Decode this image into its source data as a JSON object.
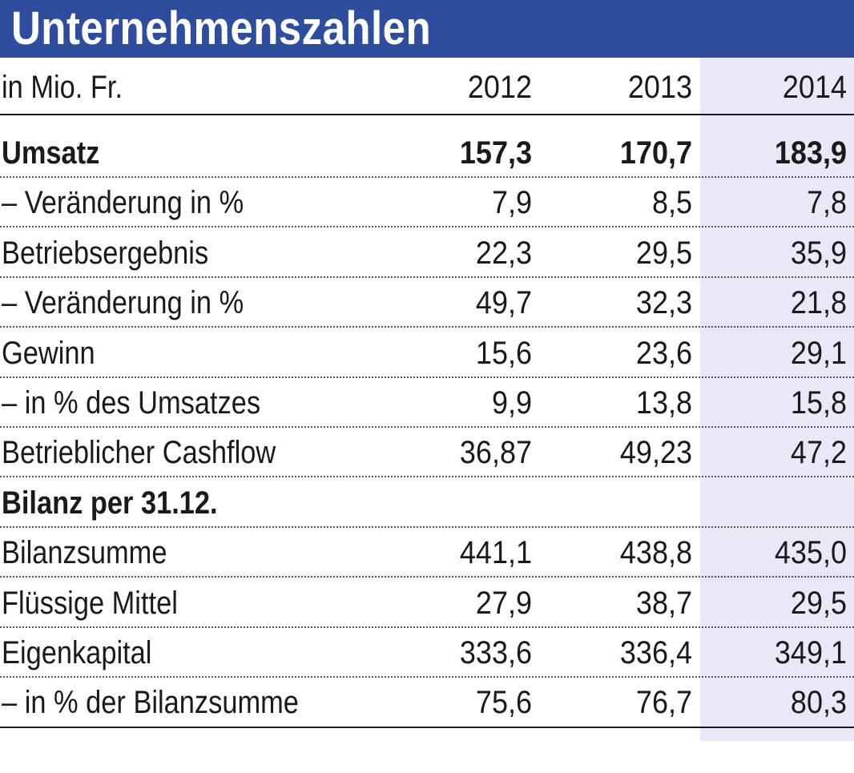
{
  "colors": {
    "accent": "#2f4d9e",
    "shade": "#e8e9f6"
  },
  "title": "Unternehmenszahlen",
  "chart_data": {
    "type": "table",
    "unit_label": "in Mio. Fr.",
    "columns": [
      "2012",
      "2013",
      "2014"
    ],
    "rows": [
      {
        "label": "Umsatz",
        "values": [
          "157,3",
          "170,7",
          "183,9"
        ],
        "bold": true
      },
      {
        "label": "– Veränderung in %",
        "values": [
          "7,9",
          "8,5",
          "7,8"
        ]
      },
      {
        "label": "Betriebsergebnis",
        "values": [
          "22,3",
          "29,5",
          "35,9"
        ]
      },
      {
        "label": "– Veränderung in %",
        "values": [
          "49,7",
          "32,3",
          "21,8"
        ]
      },
      {
        "label": "Gewinn",
        "values": [
          "15,6",
          "23,6",
          "29,1"
        ]
      },
      {
        "label": "– in % des Umsatzes",
        "values": [
          "9,9",
          "13,8",
          "15,8"
        ]
      },
      {
        "label": "Betrieblicher Cashflow",
        "values": [
          "36,87",
          "49,23",
          "47,2"
        ]
      },
      {
        "label": "Bilanz per 31.12.",
        "values": [
          "",
          "",
          ""
        ],
        "bold": true,
        "section": true
      },
      {
        "label": "Bilanzsumme",
        "values": [
          "441,1",
          "438,8",
          "435,0"
        ]
      },
      {
        "label": "Flüssige Mittel",
        "values": [
          "27,9",
          "38,7",
          "29,5"
        ]
      },
      {
        "label": "Eigenkapital",
        "values": [
          "333,6",
          "336,4",
          "349,1"
        ]
      },
      {
        "label": "– in % der Bilanzsumme",
        "values": [
          "75,6",
          "76,7",
          "80,3"
        ]
      }
    ]
  }
}
